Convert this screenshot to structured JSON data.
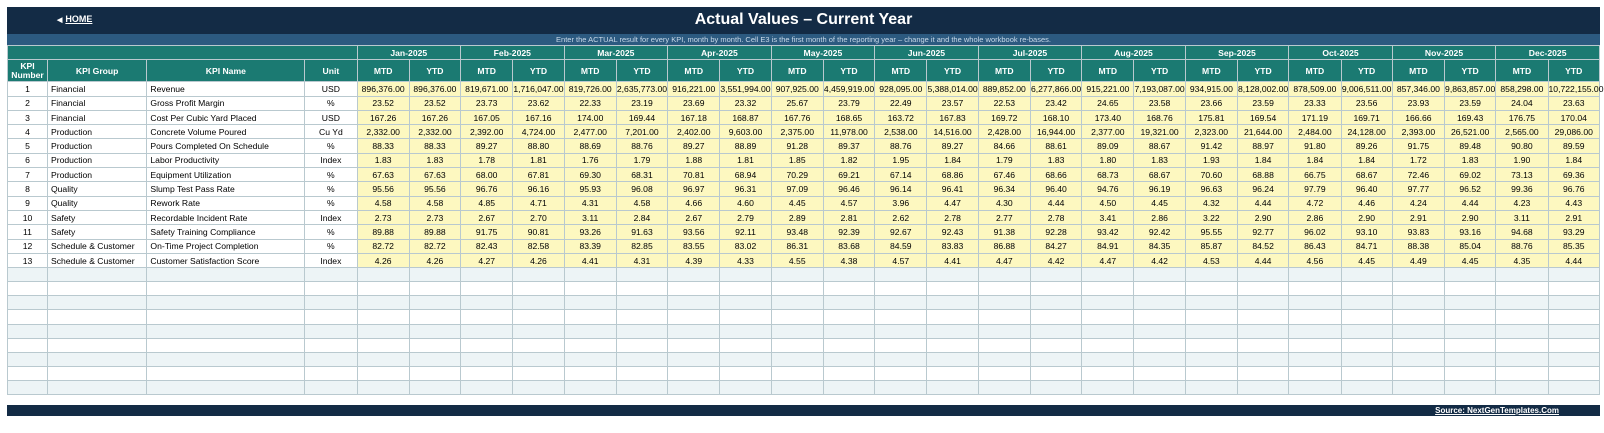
{
  "header": {
    "home_label": "HOME",
    "title": "Actual Values  –  Current Year",
    "subtitle": "Enter the ACTUAL result for every KPI, month by month. Cell E3 is the first month of the reporting year – change it and the whole workbook re-bases."
  },
  "columns": {
    "kpi_number": "KPI Number",
    "kpi_group": "KPI Group",
    "kpi_name": "KPI Name",
    "unit": "Unit",
    "mtd": "MTD",
    "ytd": "YTD"
  },
  "months": [
    "Jan-2025",
    "Feb-2025",
    "Mar-2025",
    "Apr-2025",
    "May-2025",
    "Jun-2025",
    "Jul-2025",
    "Aug-2025",
    "Sep-2025",
    "Oct-2025",
    "Nov-2025",
    "Dec-2025"
  ],
  "rows": [
    {
      "num": "1",
      "group": "Financial",
      "name": "Revenue",
      "unit": "USD",
      "values": [
        "896,376.00",
        "896,376.00",
        "819,671.00",
        "1,716,047.00",
        "819,726.00",
        "2,635,773.00",
        "916,221.00",
        "3,551,994.00",
        "907,925.00",
        "4,459,919.00",
        "928,095.00",
        "5,388,014.00",
        "889,852.00",
        "6,277,866.00",
        "915,221.00",
        "7,193,087.00",
        "934,915.00",
        "8,128,002.00",
        "878,509.00",
        "9,006,511.00",
        "857,346.00",
        "9,863,857.00",
        "858,298.00",
        "10,722,155.00"
      ]
    },
    {
      "num": "2",
      "group": "Financial",
      "name": "Gross Profit Margin",
      "unit": "%",
      "values": [
        "23.52",
        "23.52",
        "23.73",
        "23.62",
        "22.33",
        "23.19",
        "23.69",
        "23.32",
        "25.67",
        "23.79",
        "22.49",
        "23.57",
        "22.53",
        "23.42",
        "24.65",
        "23.58",
        "23.66",
        "23.59",
        "23.33",
        "23.56",
        "23.93",
        "23.59",
        "24.04",
        "23.63"
      ]
    },
    {
      "num": "3",
      "group": "Financial",
      "name": "Cost Per Cubic Yard Placed",
      "unit": "USD",
      "values": [
        "167.26",
        "167.26",
        "167.05",
        "167.16",
        "174.00",
        "169.44",
        "167.18",
        "168.87",
        "167.76",
        "168.65",
        "163.72",
        "167.83",
        "169.72",
        "168.10",
        "173.40",
        "168.76",
        "175.81",
        "169.54",
        "171.19",
        "169.71",
        "166.66",
        "169.43",
        "176.75",
        "170.04"
      ]
    },
    {
      "num": "4",
      "group": "Production",
      "name": "Concrete Volume Poured",
      "unit": "Cu Yd",
      "values": [
        "2,332.00",
        "2,332.00",
        "2,392.00",
        "4,724.00",
        "2,477.00",
        "7,201.00",
        "2,402.00",
        "9,603.00",
        "2,375.00",
        "11,978.00",
        "2,538.00",
        "14,516.00",
        "2,428.00",
        "16,944.00",
        "2,377.00",
        "19,321.00",
        "2,323.00",
        "21,644.00",
        "2,484.00",
        "24,128.00",
        "2,393.00",
        "26,521.00",
        "2,565.00",
        "29,086.00"
      ]
    },
    {
      "num": "5",
      "group": "Production",
      "name": "Pours Completed On Schedule",
      "unit": "%",
      "values": [
        "88.33",
        "88.33",
        "89.27",
        "88.80",
        "88.69",
        "88.76",
        "89.27",
        "88.89",
        "91.28",
        "89.37",
        "88.76",
        "89.27",
        "84.66",
        "88.61",
        "89.09",
        "88.67",
        "91.42",
        "88.97",
        "91.80",
        "89.26",
        "91.75",
        "89.48",
        "90.80",
        "89.59"
      ]
    },
    {
      "num": "6",
      "group": "Production",
      "name": "Labor Productivity",
      "unit": "Index",
      "values": [
        "1.83",
        "1.83",
        "1.78",
        "1.81",
        "1.76",
        "1.79",
        "1.88",
        "1.81",
        "1.85",
        "1.82",
        "1.95",
        "1.84",
        "1.79",
        "1.83",
        "1.80",
        "1.83",
        "1.93",
        "1.84",
        "1.84",
        "1.84",
        "1.72",
        "1.83",
        "1.90",
        "1.84"
      ]
    },
    {
      "num": "7",
      "group": "Production",
      "name": "Equipment Utilization",
      "unit": "%",
      "values": [
        "67.63",
        "67.63",
        "68.00",
        "67.81",
        "69.30",
        "68.31",
        "70.81",
        "68.94",
        "70.29",
        "69.21",
        "67.14",
        "68.86",
        "67.46",
        "68.66",
        "68.73",
        "68.67",
        "70.60",
        "68.88",
        "66.75",
        "68.67",
        "72.46",
        "69.02",
        "73.13",
        "69.36"
      ]
    },
    {
      "num": "8",
      "group": "Quality",
      "name": "Slump Test Pass Rate",
      "unit": "%",
      "values": [
        "95.56",
        "95.56",
        "96.76",
        "96.16",
        "95.93",
        "96.08",
        "96.97",
        "96.31",
        "97.09",
        "96.46",
        "96.14",
        "96.41",
        "96.34",
        "96.40",
        "94.76",
        "96.19",
        "96.63",
        "96.24",
        "97.79",
        "96.40",
        "97.77",
        "96.52",
        "99.36",
        "96.76"
      ]
    },
    {
      "num": "9",
      "group": "Quality",
      "name": "Rework Rate",
      "unit": "%",
      "values": [
        "4.58",
        "4.58",
        "4.85",
        "4.71",
        "4.31",
        "4.58",
        "4.66",
        "4.60",
        "4.45",
        "4.57",
        "3.96",
        "4.47",
        "4.30",
        "4.44",
        "4.50",
        "4.45",
        "4.32",
        "4.44",
        "4.72",
        "4.46",
        "4.24",
        "4.44",
        "4.23",
        "4.43"
      ]
    },
    {
      "num": "10",
      "group": "Safety",
      "name": "Recordable Incident Rate",
      "unit": "Index",
      "values": [
        "2.73",
        "2.73",
        "2.67",
        "2.70",
        "3.11",
        "2.84",
        "2.67",
        "2.79",
        "2.89",
        "2.81",
        "2.62",
        "2.78",
        "2.77",
        "2.78",
        "3.41",
        "2.86",
        "3.22",
        "2.90",
        "2.86",
        "2.90",
        "2.91",
        "2.90",
        "3.11",
        "2.91"
      ]
    },
    {
      "num": "11",
      "group": "Safety",
      "name": "Safety Training Compliance",
      "unit": "%",
      "values": [
        "89.88",
        "89.88",
        "91.75",
        "90.81",
        "93.26",
        "91.63",
        "93.56",
        "92.11",
        "93.48",
        "92.39",
        "92.67",
        "92.43",
        "91.38",
        "92.28",
        "93.42",
        "92.42",
        "95.55",
        "92.77",
        "96.02",
        "93.10",
        "93.83",
        "93.16",
        "94.68",
        "93.29"
      ]
    },
    {
      "num": "12",
      "group": "Schedule & Customer",
      "name": "On-Time Project Completion",
      "unit": "%",
      "values": [
        "82.72",
        "82.72",
        "82.43",
        "82.58",
        "83.39",
        "82.85",
        "83.55",
        "83.02",
        "86.31",
        "83.68",
        "84.59",
        "83.83",
        "86.88",
        "84.27",
        "84.91",
        "84.35",
        "85.87",
        "84.52",
        "86.43",
        "84.71",
        "88.38",
        "85.04",
        "88.76",
        "85.35"
      ]
    },
    {
      "num": "13",
      "group": "Schedule & Customer",
      "name": "Customer Satisfaction Score",
      "unit": "Index",
      "values": [
        "4.26",
        "4.26",
        "4.27",
        "4.26",
        "4.41",
        "4.31",
        "4.39",
        "4.33",
        "4.55",
        "4.38",
        "4.57",
        "4.41",
        "4.47",
        "4.42",
        "4.47",
        "4.42",
        "4.53",
        "4.44",
        "4.56",
        "4.45",
        "4.49",
        "4.45",
        "4.35",
        "4.44"
      ]
    }
  ],
  "footer": {
    "source_label": "Source: NextGenTemplates.Com"
  },
  "colors": {
    "header_bg": "#132b45",
    "subtitle_bg": "#2c5a80",
    "column_header_bg": "#1b7a72",
    "input_cell_bg": "#fdf8c0",
    "empty_row_bg": "#edf4f6"
  }
}
